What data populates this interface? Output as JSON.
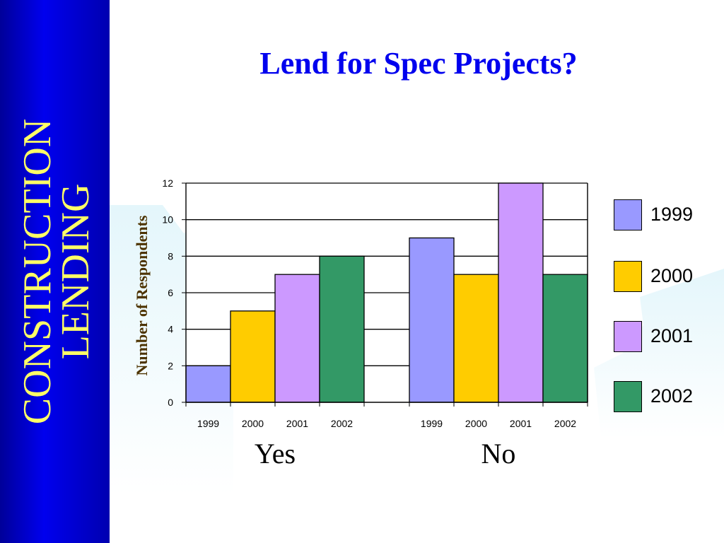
{
  "sidebar": {
    "line1": "CONSTRUCTION",
    "line2": "LENDING"
  },
  "slide": {
    "title": "Lend for Spec Projects?"
  },
  "colors": {
    "sidebar": "#0000cc",
    "sidebar_text": "#ffff66",
    "title": "#0000ee",
    "axis_label": "#4d3300"
  },
  "chart_data": {
    "type": "bar",
    "title": "",
    "ylabel": "Number of Respondents",
    "xlabel": "",
    "ylim": [
      0,
      12
    ],
    "yticks": [
      0,
      2,
      4,
      6,
      8,
      10,
      12
    ],
    "grid": true,
    "legend_position": "right",
    "groups": [
      {
        "name": "Yes",
        "categories": [
          "1999",
          "2000",
          "2001",
          "2002"
        ],
        "values": [
          2,
          5,
          7,
          8
        ]
      },
      {
        "name": "No",
        "categories": [
          "1999",
          "2000",
          "2001",
          "2002"
        ],
        "values": [
          9,
          7,
          12,
          7
        ]
      }
    ],
    "series": [
      {
        "name": "1999",
        "color": "#9999ff"
      },
      {
        "name": "2000",
        "color": "#ffcc00"
      },
      {
        "name": "2001",
        "color": "#cc99ff"
      },
      {
        "name": "2002",
        "color": "#339966"
      }
    ]
  }
}
